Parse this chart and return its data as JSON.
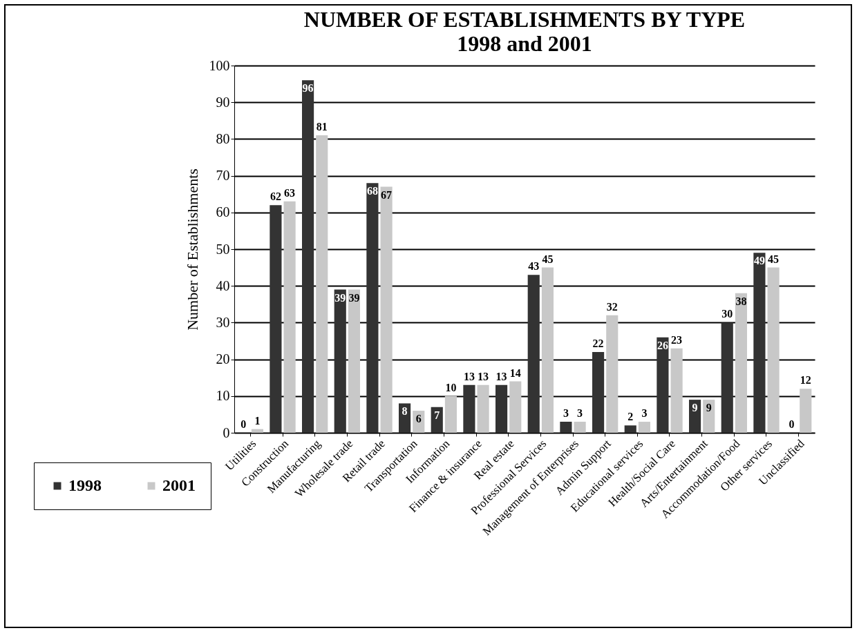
{
  "chart_data": {
    "type": "bar",
    "title": "NUMBER OF ESTABLISHMENTS BY TYPE",
    "subtitle": "1998 and 2001",
    "ylabel": "Number of Establishments",
    "categories": [
      "Utilities",
      "Construction",
      "Manufacturing",
      "Wholesale trade",
      "Retail trade",
      "Transportation",
      "Information",
      "Finance & insurance",
      "Real estate",
      "Professional Services",
      "Management of Enterprises",
      "Admin Support",
      "Educational services",
      "Health/Social Care",
      "Arts/Entertainment",
      "Accommodation/Food",
      "Other services",
      "Unclassified"
    ],
    "series": [
      {
        "name": "1998",
        "color": "#333333",
        "values": [
          0,
          62,
          96,
          39,
          68,
          8,
          7,
          13,
          13,
          43,
          3,
          22,
          2,
          26,
          9,
          30,
          49,
          0
        ]
      },
      {
        "name": "2001",
        "color": "#c8c8c8",
        "values": [
          1,
          63,
          81,
          39,
          67,
          6,
          10,
          13,
          14,
          45,
          3,
          32,
          3,
          23,
          9,
          38,
          45,
          12
        ]
      }
    ],
    "ylim": [
      0,
      100
    ],
    "yticks": [
      0,
      10,
      20,
      30,
      40,
      50,
      60,
      70,
      80,
      90,
      100
    ],
    "grid": "y",
    "legend": "bottom left",
    "data_labels": true
  }
}
